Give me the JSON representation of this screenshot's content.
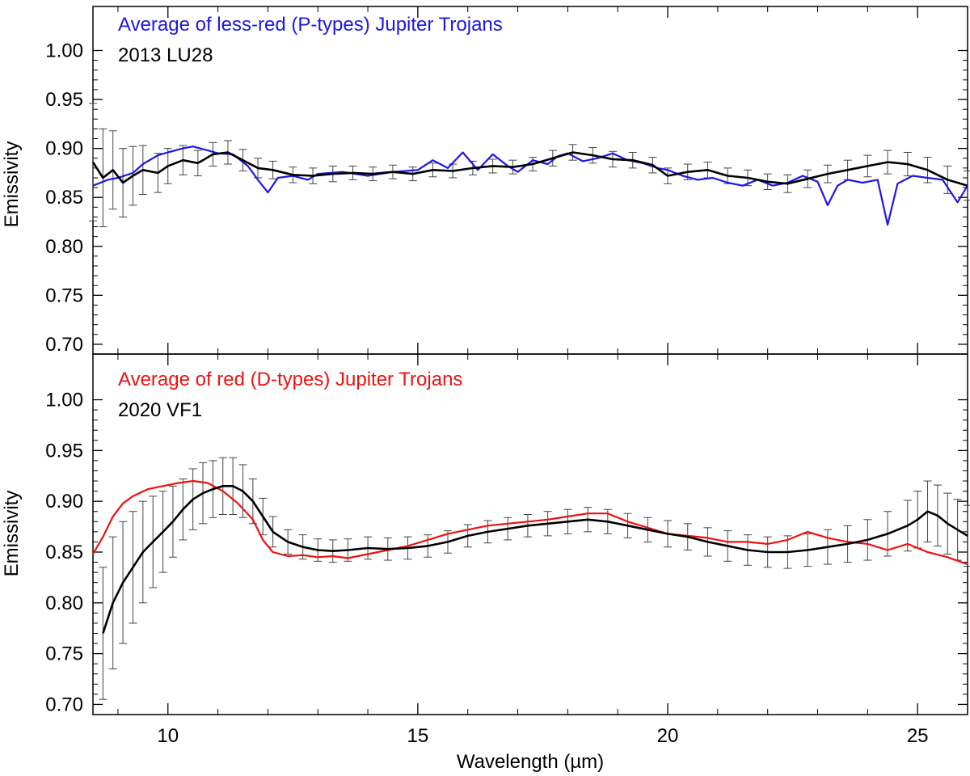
{
  "figure": {
    "xlabel": "Wavelength (µm)",
    "colors": {
      "axis": "#000000",
      "blue": "#1f16e6",
      "red": "#ee1111",
      "err": "#555555",
      "spec": "#000000"
    }
  },
  "chart_data": [
    {
      "type": "line",
      "panel": "top",
      "ylabel": "Emissivity",
      "xlim": [
        8.5,
        26.0
      ],
      "ylim": [
        0.69,
        1.045
      ],
      "xticks": [
        10,
        15,
        20,
        25
      ],
      "xtick_labels": [
        "10",
        "15",
        "20",
        "25"
      ],
      "yticks": [
        0.7,
        0.75,
        0.8,
        0.85,
        0.9,
        0.95,
        1.0
      ],
      "ytick_labels": [
        "0.70",
        "0.75",
        "0.80",
        "0.85",
        "0.90",
        "0.95",
        "1.00"
      ],
      "legend": [
        "Average of less-red (P-types) Jupiter Trojans",
        "2013 LU28"
      ],
      "series": [
        {
          "name": "Average of less-red (P-types) Jupiter Trojans",
          "color": "#1f16e6",
          "x": [
            8.5,
            8.8,
            9.0,
            9.3,
            9.5,
            9.8,
            10.0,
            10.3,
            10.5,
            10.8,
            11.0,
            11.3,
            11.6,
            11.8,
            12.0,
            12.2,
            12.5,
            12.8,
            13.0,
            13.5,
            14.0,
            14.5,
            15.0,
            15.3,
            15.6,
            15.9,
            16.2,
            16.5,
            16.8,
            17.0,
            17.3,
            17.6,
            17.8,
            18.0,
            18.3,
            18.6,
            18.9,
            19.2,
            19.5,
            19.8,
            20.0,
            20.3,
            20.6,
            20.9,
            21.2,
            21.5,
            21.8,
            22.1,
            22.4,
            22.7,
            23.0,
            23.2,
            23.4,
            23.6,
            23.9,
            24.2,
            24.4,
            24.6,
            24.9,
            25.2,
            25.5,
            25.8,
            26.0
          ],
          "y": [
            0.862,
            0.868,
            0.87,
            0.875,
            0.884,
            0.893,
            0.896,
            0.9,
            0.902,
            0.898,
            0.895,
            0.894,
            0.882,
            0.868,
            0.855,
            0.87,
            0.872,
            0.868,
            0.874,
            0.876,
            0.872,
            0.876,
            0.878,
            0.888,
            0.88,
            0.896,
            0.878,
            0.894,
            0.882,
            0.876,
            0.888,
            0.884,
            0.892,
            0.895,
            0.887,
            0.89,
            0.895,
            0.888,
            0.885,
            0.88,
            0.878,
            0.872,
            0.868,
            0.87,
            0.865,
            0.862,
            0.868,
            0.862,
            0.865,
            0.872,
            0.866,
            0.842,
            0.862,
            0.868,
            0.865,
            0.868,
            0.822,
            0.864,
            0.872,
            0.87,
            0.868,
            0.845,
            0.862
          ]
        },
        {
          "name": "2013 LU28",
          "color": "#000000",
          "errorbars": true,
          "x": [
            8.5,
            8.7,
            8.9,
            9.1,
            9.3,
            9.5,
            9.8,
            10.0,
            10.3,
            10.6,
            10.9,
            11.2,
            11.5,
            11.8,
            12.1,
            12.5,
            12.9,
            13.3,
            13.7,
            14.1,
            14.5,
            14.9,
            15.3,
            15.7,
            16.1,
            16.5,
            16.9,
            17.3,
            17.7,
            18.1,
            18.5,
            18.9,
            19.3,
            19.7,
            20.0,
            20.4,
            20.8,
            21.2,
            21.6,
            22.0,
            22.4,
            22.8,
            23.2,
            23.6,
            24.0,
            24.4,
            24.8,
            25.2,
            25.6,
            26.0
          ],
          "y": [
            0.886,
            0.87,
            0.878,
            0.865,
            0.872,
            0.878,
            0.875,
            0.882,
            0.888,
            0.885,
            0.894,
            0.896,
            0.888,
            0.88,
            0.878,
            0.873,
            0.872,
            0.874,
            0.875,
            0.874,
            0.876,
            0.874,
            0.878,
            0.877,
            0.88,
            0.882,
            0.881,
            0.884,
            0.89,
            0.896,
            0.893,
            0.889,
            0.888,
            0.883,
            0.872,
            0.876,
            0.878,
            0.872,
            0.87,
            0.866,
            0.864,
            0.869,
            0.874,
            0.878,
            0.882,
            0.886,
            0.884,
            0.878,
            0.868,
            0.862
          ],
          "err": [
            0.06,
            0.05,
            0.04,
            0.035,
            0.03,
            0.025,
            0.02,
            0.018,
            0.015,
            0.013,
            0.012,
            0.012,
            0.011,
            0.01,
            0.009,
            0.008,
            0.008,
            0.008,
            0.007,
            0.007,
            0.007,
            0.007,
            0.007,
            0.007,
            0.007,
            0.007,
            0.007,
            0.007,
            0.008,
            0.008,
            0.008,
            0.008,
            0.008,
            0.008,
            0.008,
            0.008,
            0.008,
            0.008,
            0.008,
            0.008,
            0.009,
            0.009,
            0.009,
            0.01,
            0.011,
            0.012,
            0.012,
            0.013,
            0.014,
            0.015
          ]
        }
      ]
    },
    {
      "type": "line",
      "panel": "bottom",
      "ylabel": "Emissivity",
      "xlim": [
        8.5,
        26.0
      ],
      "ylim": [
        0.69,
        1.045
      ],
      "xticks": [
        10,
        15,
        20,
        25
      ],
      "xtick_labels": [
        "10",
        "15",
        "20",
        "25"
      ],
      "yticks": [
        0.7,
        0.75,
        0.8,
        0.85,
        0.9,
        0.95,
        1.0
      ],
      "ytick_labels": [
        "0.70",
        "0.75",
        "0.80",
        "0.85",
        "0.90",
        "0.95",
        "1.00"
      ],
      "legend": [
        "Average of red (D-types) Jupiter Trojans",
        "2020 VF1"
      ],
      "series": [
        {
          "name": "Average of red (D-types) Jupiter Trojans",
          "color": "#ee1111",
          "x": [
            8.5,
            8.7,
            8.9,
            9.1,
            9.3,
            9.6,
            9.9,
            10.2,
            10.5,
            10.8,
            11.1,
            11.4,
            11.7,
            11.9,
            12.1,
            12.4,
            12.7,
            13.0,
            13.3,
            13.6,
            14.0,
            14.4,
            14.8,
            15.2,
            15.6,
            16.0,
            16.4,
            16.8,
            17.2,
            17.6,
            18.0,
            18.4,
            18.8,
            19.2,
            19.6,
            20.0,
            20.4,
            20.8,
            21.2,
            21.6,
            22.0,
            22.4,
            22.8,
            23.2,
            23.6,
            24.0,
            24.4,
            24.8,
            25.2,
            25.6,
            26.0
          ],
          "y": [
            0.848,
            0.865,
            0.885,
            0.898,
            0.905,
            0.912,
            0.915,
            0.918,
            0.92,
            0.918,
            0.91,
            0.898,
            0.882,
            0.862,
            0.85,
            0.846,
            0.847,
            0.845,
            0.846,
            0.844,
            0.848,
            0.852,
            0.856,
            0.862,
            0.868,
            0.872,
            0.876,
            0.878,
            0.88,
            0.882,
            0.885,
            0.888,
            0.888,
            0.88,
            0.874,
            0.868,
            0.866,
            0.864,
            0.86,
            0.86,
            0.858,
            0.862,
            0.87,
            0.864,
            0.86,
            0.858,
            0.852,
            0.858,
            0.85,
            0.845,
            0.838
          ]
        },
        {
          "name": "2020 VF1",
          "color": "#000000",
          "errorbars": true,
          "x": [
            8.7,
            8.9,
            9.1,
            9.3,
            9.5,
            9.7,
            9.9,
            10.1,
            10.3,
            10.5,
            10.7,
            10.9,
            11.1,
            11.3,
            11.5,
            11.7,
            11.9,
            12.1,
            12.4,
            12.7,
            13.0,
            13.3,
            13.6,
            14.0,
            14.4,
            14.8,
            15.2,
            15.6,
            16.0,
            16.4,
            16.8,
            17.2,
            17.6,
            18.0,
            18.4,
            18.8,
            19.2,
            19.6,
            20.0,
            20.4,
            20.8,
            21.2,
            21.6,
            22.0,
            22.4,
            22.8,
            23.2,
            23.6,
            24.0,
            24.4,
            24.8,
            25.0,
            25.2,
            25.4,
            25.6,
            25.8,
            26.0
          ],
          "y": [
            0.77,
            0.8,
            0.82,
            0.835,
            0.85,
            0.86,
            0.87,
            0.88,
            0.892,
            0.902,
            0.908,
            0.912,
            0.915,
            0.915,
            0.91,
            0.9,
            0.885,
            0.87,
            0.86,
            0.855,
            0.852,
            0.851,
            0.852,
            0.854,
            0.853,
            0.854,
            0.856,
            0.86,
            0.866,
            0.87,
            0.873,
            0.876,
            0.878,
            0.88,
            0.882,
            0.88,
            0.876,
            0.872,
            0.868,
            0.865,
            0.86,
            0.856,
            0.852,
            0.85,
            0.85,
            0.852,
            0.855,
            0.858,
            0.862,
            0.868,
            0.876,
            0.882,
            0.89,
            0.886,
            0.878,
            0.872,
            0.866
          ],
          "err": [
            0.065,
            0.065,
            0.06,
            0.055,
            0.05,
            0.045,
            0.04,
            0.035,
            0.03,
            0.03,
            0.03,
            0.028,
            0.028,
            0.028,
            0.026,
            0.022,
            0.018,
            0.015,
            0.012,
            0.012,
            0.011,
            0.011,
            0.011,
            0.011,
            0.011,
            0.011,
            0.011,
            0.011,
            0.011,
            0.011,
            0.011,
            0.011,
            0.012,
            0.012,
            0.012,
            0.012,
            0.012,
            0.012,
            0.013,
            0.013,
            0.014,
            0.015,
            0.015,
            0.015,
            0.016,
            0.016,
            0.017,
            0.018,
            0.02,
            0.022,
            0.025,
            0.028,
            0.03,
            0.03,
            0.03,
            0.03,
            0.03
          ]
        }
      ]
    }
  ]
}
